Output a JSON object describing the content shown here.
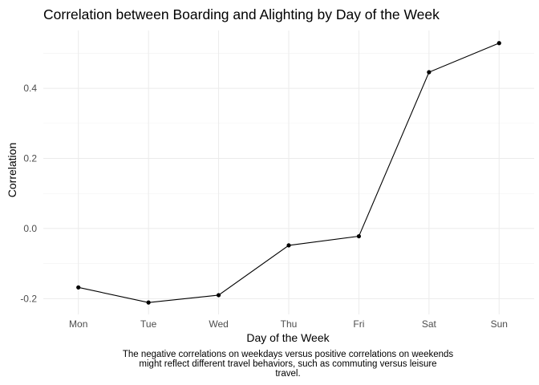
{
  "chart_data": {
    "type": "line",
    "title": "Correlation between Boarding and Alighting by Day of the Week",
    "xlabel": "Day of the Week",
    "ylabel": "Correlation",
    "categories": [
      "Mon",
      "Tue",
      "Wed",
      "Thu",
      "Fri",
      "Sat",
      "Sun"
    ],
    "series": [
      {
        "values": [
          -0.168,
          -0.211,
          -0.19,
          -0.048,
          -0.022,
          0.446,
          0.529
        ]
      }
    ],
    "yticks": [
      -0.2,
      0.0,
      0.2,
      0.4
    ],
    "ytick_labels": [
      "-0.2",
      "0.0",
      "0.2",
      "0.4"
    ],
    "ylim": [
      -0.245,
      0.565
    ],
    "grid": true,
    "legend": "none",
    "caption_lines": [
      "The negative correlations on weekdays versus positive correlations on weekends",
      "might reflect different travel behaviors, such as commuting versus leisure",
      "travel."
    ],
    "colors": {
      "line": "#000000",
      "point": "#000000",
      "grid": "#ebebeb"
    }
  }
}
